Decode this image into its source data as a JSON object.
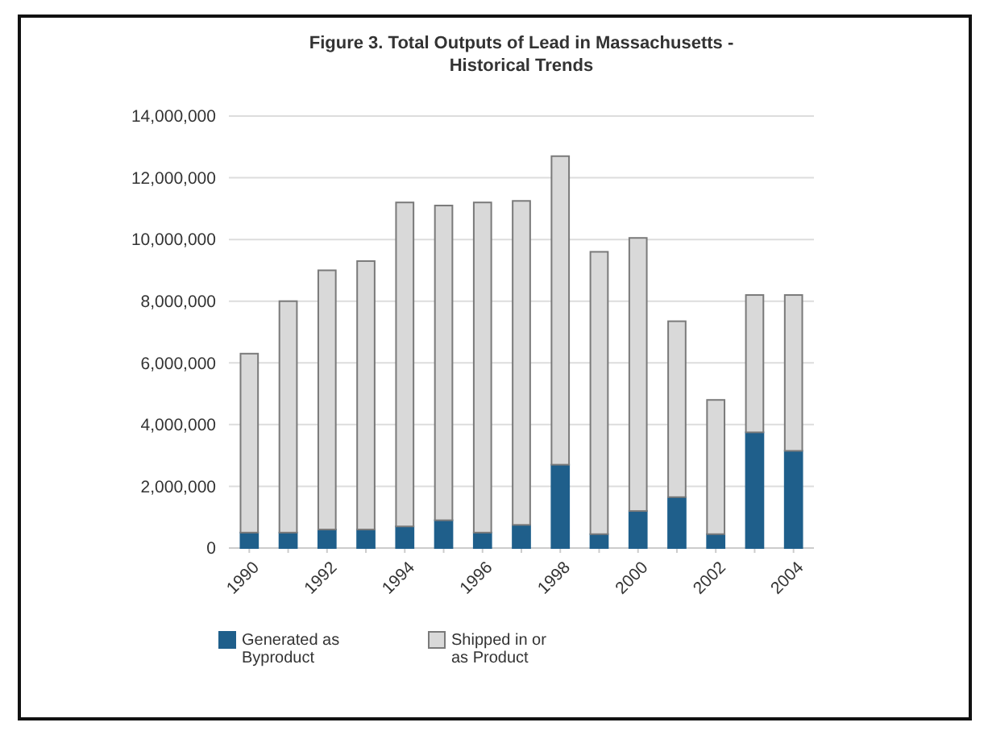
{
  "chart_data": {
    "type": "bar",
    "title": "Figure 3.  Total Outputs of Lead in Massachusetts - Historical Trends",
    "categories": [
      "1990",
      null,
      "1992",
      null,
      "1994",
      null,
      "1996",
      null,
      "1998",
      null,
      "2000",
      null,
      "2002",
      null,
      "2004"
    ],
    "stacked": true,
    "series": [
      {
        "name": "Generated as Byproduct",
        "color": "#1f5f8b",
        "values": [
          500000,
          500000,
          600000,
          600000,
          700000,
          900000,
          500000,
          750000,
          2700000,
          450000,
          1200000,
          1650000,
          450000,
          3750000,
          3150000
        ]
      },
      {
        "name": "Shipped in or as Product",
        "color": "#d9d9d9",
        "values": [
          5800000,
          7500000,
          8400000,
          8700000,
          10500000,
          10200000,
          10700000,
          10500000,
          10000000,
          9150000,
          8850000,
          5700000,
          4350000,
          4450000,
          5050000
        ]
      }
    ],
    "ylim": [
      0,
      14000000
    ],
    "yticks": [
      {
        "value": 0,
        "label": "0"
      },
      {
        "value": 2000000,
        "label": "2,000,000"
      },
      {
        "value": 4000000,
        "label": "4,000,000"
      },
      {
        "value": 6000000,
        "label": "6,000,000"
      },
      {
        "value": 8000000,
        "label": "8,000,000"
      },
      {
        "value": 10000000,
        "label": "10,000,000"
      },
      {
        "value": 12000000,
        "label": "12,000,000"
      },
      {
        "value": 14000000,
        "label": "14,000,000"
      }
    ],
    "grid": "y",
    "legend": "bottom"
  }
}
